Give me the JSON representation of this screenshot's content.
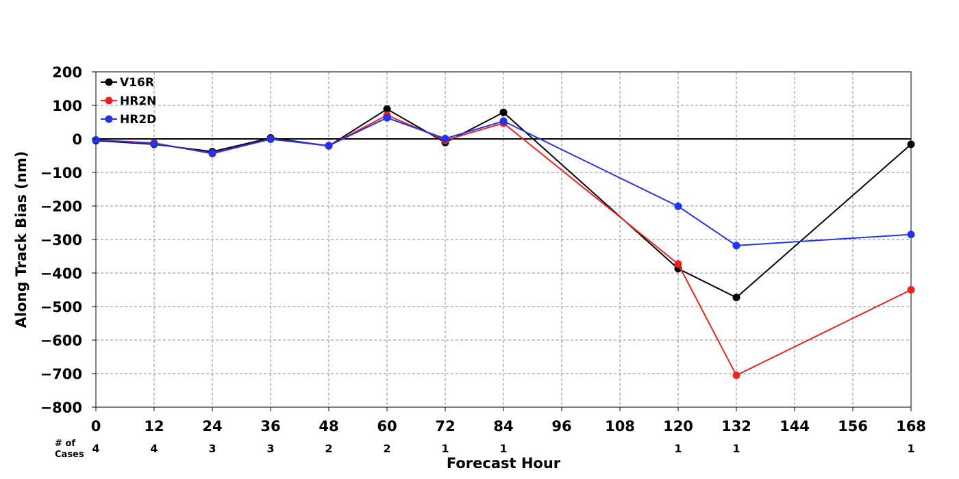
{
  "chart_data": {
    "type": "line",
    "xlabel": "Forecast Hour",
    "ylabel": "Along Track Bias (nm)",
    "xlim": [
      0,
      168
    ],
    "ylim": [
      -800,
      200
    ],
    "x_ticks": [
      0,
      12,
      24,
      36,
      48,
      60,
      72,
      84,
      96,
      108,
      120,
      132,
      144,
      156,
      168
    ],
    "x_tick_labels": [
      "0",
      "12",
      "24",
      "36",
      "48",
      "60",
      "72",
      "84",
      "96",
      "108",
      "120",
      "132",
      "144",
      "156",
      "168"
    ],
    "y_ticks": [
      200,
      100,
      0,
      -100,
      -200,
      -300,
      -400,
      -500,
      -600,
      -700,
      -800
    ],
    "y_tick_labels": [
      "200",
      "100",
      "0",
      "−100",
      "−200",
      "−300",
      "−400",
      "−500",
      "−600",
      "−700",
      "−800"
    ],
    "grid": true,
    "zero_line": true,
    "legend_position": "top-left",
    "x": [
      0,
      12,
      24,
      36,
      48,
      60,
      72,
      84,
      120,
      132,
      168
    ],
    "series": [
      {
        "name": "V16R",
        "color": "#000000",
        "values": [
          -5,
          -16,
          -38,
          3,
          -21,
          89,
          -11,
          79,
          -387,
          -473,
          -16
        ]
      },
      {
        "name": "HR2N",
        "color": "#ee2222",
        "values": [
          -3,
          -12,
          -44,
          0,
          -21,
          71,
          -4,
          47,
          -373,
          -705,
          -450
        ]
      },
      {
        "name": "HR2D",
        "color": "#2233ee",
        "values": [
          -3,
          -14,
          -42,
          -1,
          -20,
          63,
          1,
          53,
          -201,
          -318,
          -285
        ]
      }
    ],
    "cases": {
      "title_line1": "# of",
      "title_line2": "Cases",
      "x": [
        0,
        12,
        24,
        36,
        48,
        60,
        72,
        84,
        120,
        132,
        168
      ],
      "counts": [
        "4",
        "4",
        "3",
        "3",
        "2",
        "2",
        "1",
        "1",
        "1",
        "1",
        "1"
      ]
    }
  }
}
